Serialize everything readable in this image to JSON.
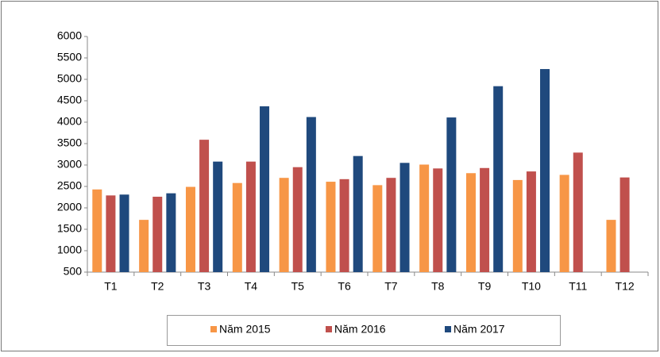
{
  "chart_data": {
    "type": "bar",
    "categories": [
      "T1",
      "T2",
      "T3",
      "T4",
      "T5",
      "T6",
      "T7",
      "T8",
      "T9",
      "T10",
      "T11",
      "T12"
    ],
    "series": [
      {
        "name": "Năm 2015",
        "color": "#f79646",
        "values": [
          2430,
          1720,
          2490,
          2580,
          2700,
          2610,
          2530,
          3010,
          2810,
          2650,
          2770,
          1720
        ]
      },
      {
        "name": "Năm 2016",
        "color": "#c0504d",
        "values": [
          2290,
          2260,
          3590,
          3080,
          2950,
          2670,
          2700,
          2920,
          2930,
          2850,
          3290,
          2710
        ]
      },
      {
        "name": "Năm 2017",
        "color": "#1f497d",
        "values": [
          2310,
          2340,
          3080,
          4370,
          4120,
          3210,
          3050,
          4110,
          4840,
          5240,
          null,
          null
        ]
      }
    ],
    "ylim": [
      500,
      6000
    ],
    "yticks": [
      500,
      1000,
      1500,
      2000,
      2500,
      3000,
      3500,
      4000,
      4500,
      5000,
      5500,
      6000
    ],
    "grid": false,
    "legend": "bottom"
  }
}
